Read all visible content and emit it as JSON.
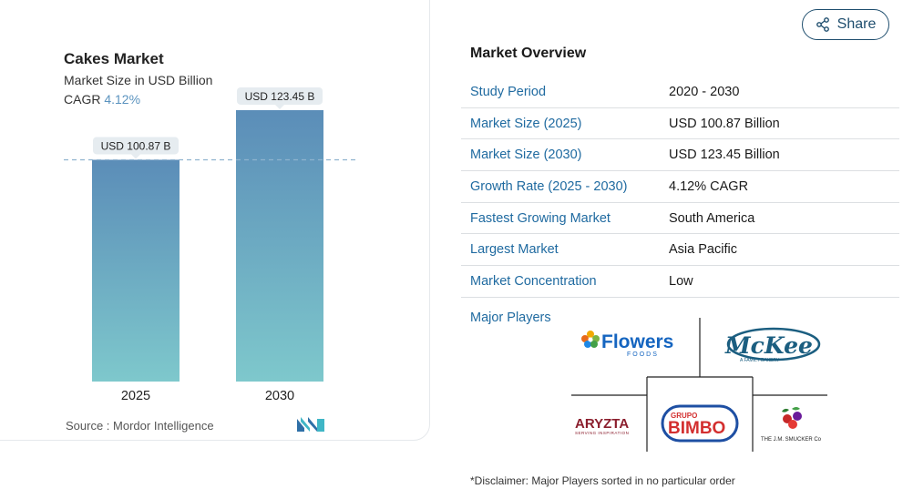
{
  "chart_data": {
    "type": "bar",
    "title": "Cakes Market",
    "subtitle": "Market Size in USD Billion",
    "cagr_label": "CAGR",
    "cagr_value": "4.12%",
    "categories": [
      "2025",
      "2030"
    ],
    "values": [
      100.87,
      123.45
    ],
    "data_labels": [
      "USD 100.87 B",
      "USD 123.45 B"
    ],
    "reference_line": 100.87,
    "ylim": [
      0,
      140
    ],
    "colors": {
      "bar_top": "#5b8db8",
      "bar_bottom": "#7ec8cc",
      "label_bg": "#e6ecf0",
      "ref_line": "#8fb3cf"
    }
  },
  "source": {
    "label": "Source :",
    "name": "Mordor Intelligence",
    "logo_icon": "mordor-logo-icon"
  },
  "share": {
    "label": "Share",
    "icon": "share-icon"
  },
  "overview": {
    "title": "Market Overview",
    "rows": [
      {
        "label": "Study Period",
        "value": "2020 - 2030"
      },
      {
        "label": "Market Size (2025)",
        "value": "USD 100.87 Billion"
      },
      {
        "label": "Market Size (2030)",
        "value": "USD 123.45 Billion"
      },
      {
        "label": "Growth Rate (2025 - 2030)",
        "value": "4.12% CAGR"
      },
      {
        "label": "Fastest Growing Market",
        "value": "South America"
      },
      {
        "label": "Largest Market",
        "value": "Asia Pacific"
      },
      {
        "label": "Market Concentration",
        "value": "Low"
      }
    ]
  },
  "players": {
    "label": "Major Players",
    "logos": {
      "flowers": {
        "word": "Flowers",
        "sub": "FOODS"
      },
      "mckee": {
        "word": "McKee",
        "sub": "A FAMILY BAKERY"
      },
      "aryzta": {
        "word": "ARYZTA",
        "sub": "SERVING INSPIRATION"
      },
      "bimbo": {
        "top": "GRUPO",
        "word": "BIMBO"
      },
      "smucker": {
        "word": "THE J.M. SMUCKER Co"
      }
    }
  },
  "disclaimer": "*Disclaimer: Major Players sorted in no particular order"
}
